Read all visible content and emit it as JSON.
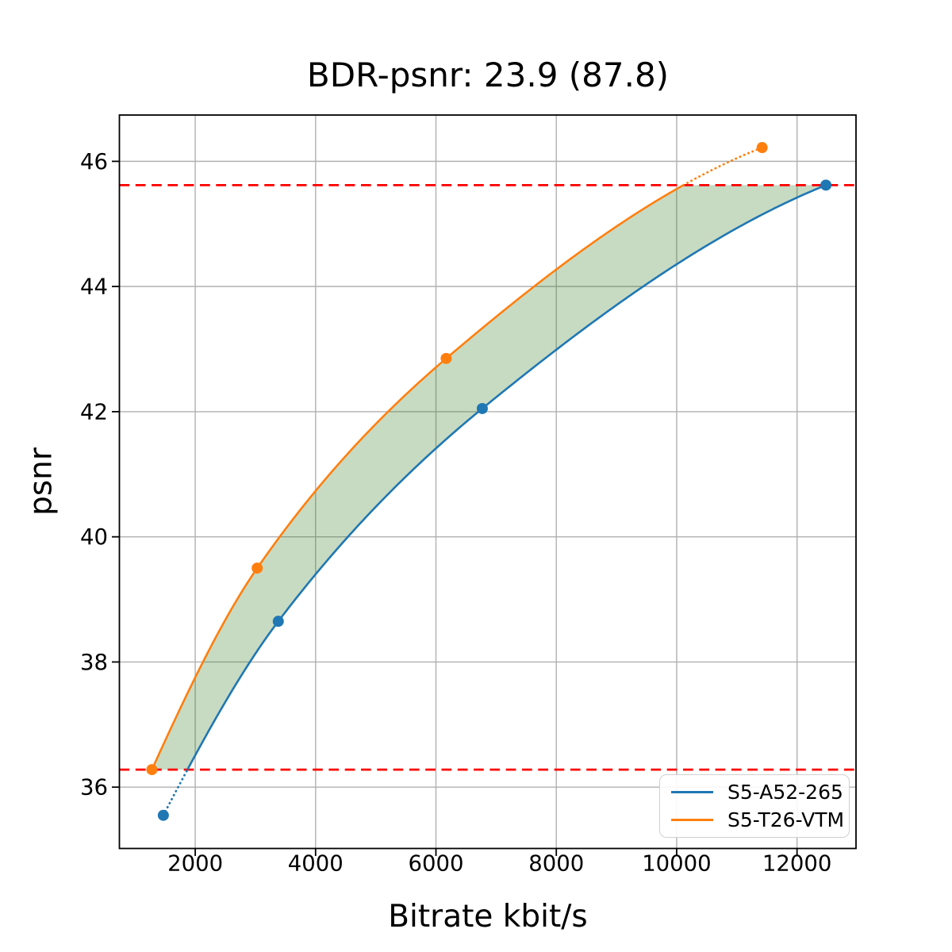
{
  "chart_data": {
    "type": "line",
    "title": "BDR-psnr: 23.9 (87.8)",
    "xlabel": "Bitrate kbit/s",
    "ylabel": "psnr",
    "xlim": [
      740,
      12980
    ],
    "ylim": [
      35.02,
      46.74
    ],
    "xticks": [
      2000,
      4000,
      6000,
      8000,
      10000,
      12000
    ],
    "yticks": [
      36,
      38,
      40,
      42,
      44,
      46
    ],
    "grid": true,
    "grid_color": "#b0b0b0",
    "axis_color": "#000000",
    "legend": {
      "position": "lower-right"
    },
    "series": [
      {
        "name": "S5-A52-265",
        "color": "#1f77b4",
        "marker": "circle",
        "points": [
          [
            1470,
            35.55
          ],
          [
            3380,
            38.65
          ],
          [
            6770,
            42.05
          ],
          [
            12480,
            45.62
          ]
        ]
      },
      {
        "name": "S5-T26-VTM",
        "color": "#ff7f0e",
        "marker": "circle",
        "points": [
          [
            1280,
            36.28
          ],
          [
            3030,
            39.5
          ],
          [
            6170,
            42.85
          ],
          [
            11420,
            46.22
          ]
        ]
      }
    ],
    "overlap_interval_psnr": [
      36.28,
      45.62
    ],
    "hlines": [
      {
        "y": 36.28,
        "color": "#ff0000",
        "style": "dashed"
      },
      {
        "y": 45.62,
        "color": "#ff0000",
        "style": "dashed"
      }
    ],
    "fill_between_color": "rgba(47,122,34,0.27)"
  }
}
